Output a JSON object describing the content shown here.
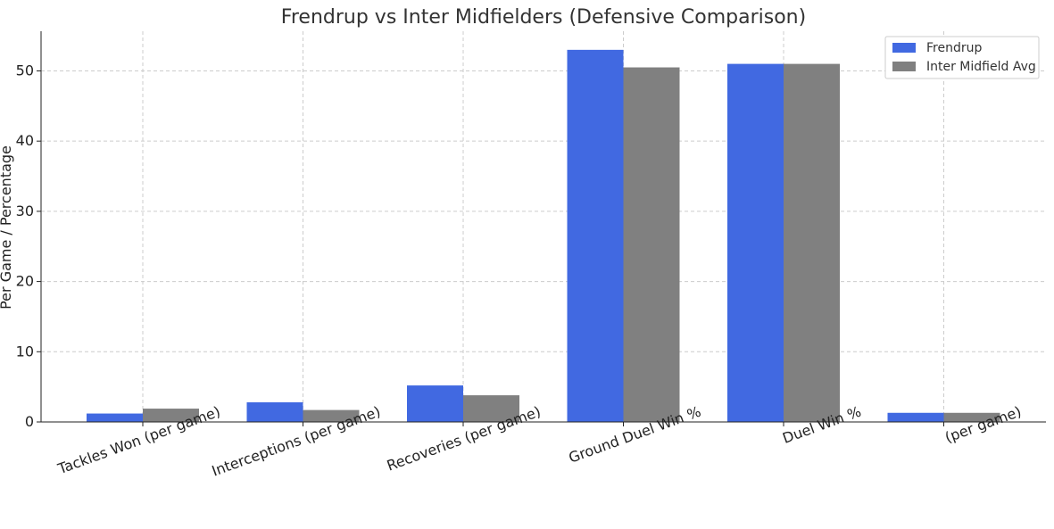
{
  "chart_data": {
    "type": "bar",
    "title": "Frendrup vs Inter Midfielders (Defensive Comparison)",
    "xlabel": "",
    "ylabel": "Per Game / Percentage",
    "categories": [
      "Tackles Won (per game)",
      "Interceptions (per game)",
      "Recoveries (per game)",
      "Ground Duel Win %",
      "Duel Win %",
      "(per game)"
    ],
    "series": [
      {
        "name": "Frendrup",
        "color": "#4169e1",
        "values": [
          1.2,
          2.8,
          5.2,
          53.0,
          51.0,
          1.3
        ]
      },
      {
        "name": "Inter Midfield Avg",
        "color": "#808080",
        "values": [
          1.9,
          1.7,
          3.8,
          50.5,
          51.0,
          1.3
        ]
      }
    ],
    "ylim": [
      0,
      55.65
    ],
    "yticks": [
      0,
      10,
      20,
      30,
      40,
      50
    ],
    "grid": true,
    "legend": "top-right"
  }
}
